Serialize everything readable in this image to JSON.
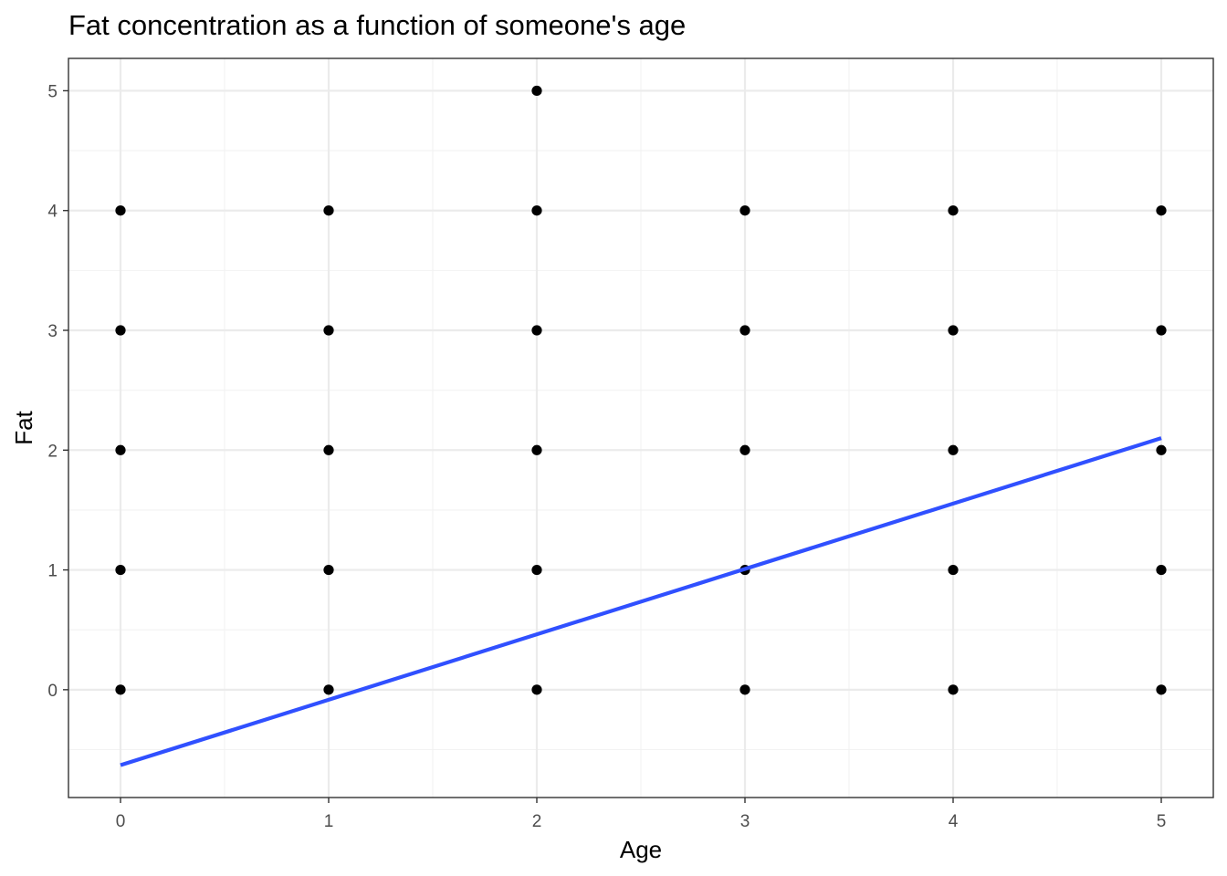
{
  "chart_data": {
    "type": "scatter",
    "title": "Fat concentration as a function of someone's age",
    "xlabel": "Age",
    "ylabel": "Fat",
    "xlim": [
      -0.25,
      5.25
    ],
    "ylim": [
      -0.9,
      5.27
    ],
    "xticks": [
      0,
      1,
      2,
      3,
      4,
      5
    ],
    "yticks": [
      0,
      1,
      2,
      3,
      4,
      5
    ],
    "grid": true,
    "legend": "none",
    "colors": {
      "points": "#000000",
      "trend_line": "#3050ff",
      "grid_major": "#ebebeb",
      "grid_minor": "#f2f2f2",
      "panel_border": "#333333"
    },
    "points": [
      {
        "x": 0,
        "y": 0
      },
      {
        "x": 0,
        "y": 1
      },
      {
        "x": 0,
        "y": 2
      },
      {
        "x": 0,
        "y": 3
      },
      {
        "x": 0,
        "y": 4
      },
      {
        "x": 1,
        "y": 0
      },
      {
        "x": 1,
        "y": 1
      },
      {
        "x": 1,
        "y": 2
      },
      {
        "x": 1,
        "y": 3
      },
      {
        "x": 1,
        "y": 4
      },
      {
        "x": 2,
        "y": 0
      },
      {
        "x": 2,
        "y": 1
      },
      {
        "x": 2,
        "y": 2
      },
      {
        "x": 2,
        "y": 3
      },
      {
        "x": 2,
        "y": 4
      },
      {
        "x": 2,
        "y": 5
      },
      {
        "x": 3,
        "y": 0
      },
      {
        "x": 3,
        "y": 1
      },
      {
        "x": 3,
        "y": 2
      },
      {
        "x": 3,
        "y": 3
      },
      {
        "x": 3,
        "y": 4
      },
      {
        "x": 4,
        "y": 0
      },
      {
        "x": 4,
        "y": 1
      },
      {
        "x": 4,
        "y": 2
      },
      {
        "x": 4,
        "y": 3
      },
      {
        "x": 4,
        "y": 4
      },
      {
        "x": 5,
        "y": 0
      },
      {
        "x": 5,
        "y": 1
      },
      {
        "x": 5,
        "y": 2
      },
      {
        "x": 5,
        "y": 3
      },
      {
        "x": 5,
        "y": 4
      }
    ],
    "trend_line": {
      "x": [
        0,
        5
      ],
      "y": [
        -0.63,
        2.1
      ]
    }
  }
}
